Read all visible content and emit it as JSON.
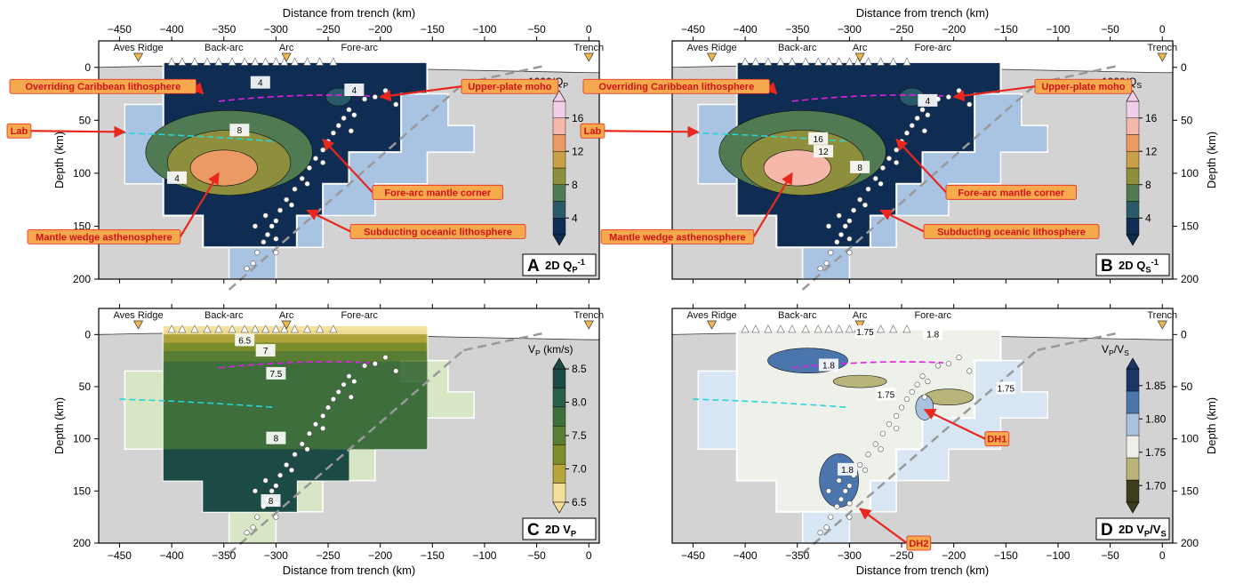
{
  "figure": {
    "x_axis_label": "Distance from trench (km)",
    "y_axis_label": "Depth (km)",
    "x_ticks": [
      -450,
      -400,
      -350,
      -300,
      -250,
      -200,
      -150,
      -100,
      -50,
      0
    ],
    "y_ticks": [
      0,
      50,
      100,
      150,
      200
    ],
    "x_range": [
      -470,
      10
    ],
    "y_range": [
      -25,
      200
    ],
    "surface_labels": [
      "Aves Ridge",
      "Back-arc",
      "Arc",
      "Fore-arc",
      "Trench"
    ]
  },
  "chart_data": [
    {
      "type": "heatmap",
      "panel_letter": "A",
      "panel_title": "2D Q_P^-1",
      "colorbar": {
        "title": "1000/Q_P",
        "ticks": [
          4,
          8,
          12,
          16
        ],
        "range": [
          2,
          18
        ],
        "colors": [
          "#0f2d52",
          "#2a5a6a",
          "#4f7a52",
          "#8e8f3c",
          "#c8a046",
          "#ec9a63",
          "#f5b8aa",
          "#f2cfe8"
        ]
      },
      "contour_labels": [
        "4",
        "8",
        "4",
        "4"
      ],
      "annotations": [
        "Overriding Caribbean lithosphere",
        "Upper-plate moho",
        "Lab",
        "Fore-arc mantle corner",
        "Mantle wedge asthenosphere",
        "Subducting oceanic lithosphere"
      ]
    },
    {
      "type": "heatmap",
      "panel_letter": "B",
      "panel_title": "2D Q_S^-1",
      "colorbar": {
        "title": "1000/Q_S",
        "ticks": [
          4,
          8,
          12,
          16
        ],
        "range": [
          2,
          18
        ],
        "colors": [
          "#0f2d52",
          "#2a5a6a",
          "#4f7a52",
          "#8e8f3c",
          "#c8a046",
          "#ec9a63",
          "#f5b8aa",
          "#f2cfe8"
        ]
      },
      "contour_labels": [
        "16",
        "12",
        "8",
        "4"
      ],
      "annotations": [
        "Overriding Caribbean lithosphere",
        "Upper-plate moho",
        "Lab",
        "Fore-arc mantle corner",
        "Mantle wedge asthenosphere",
        "Subducting oceanic lithosphere"
      ]
    },
    {
      "type": "heatmap",
      "panel_letter": "C",
      "panel_title": "2D V_P",
      "colorbar": {
        "title": "V_P (km/s)",
        "ticks": [
          6.5,
          7.0,
          7.5,
          8.0,
          8.5
        ],
        "tick_labels": [
          "6.5",
          "7.0",
          "7.5",
          "8.0",
          "8.5"
        ],
        "range": [
          6.5,
          8.5
        ],
        "colors": [
          "#f3df98",
          "#b5a53a",
          "#7f8e2a",
          "#5b7d32",
          "#3e6e3c",
          "#295e49",
          "#1c4a44"
        ]
      },
      "contour_labels": [
        "6.5",
        "7",
        "7.5",
        "8",
        "8"
      ],
      "annotations": []
    },
    {
      "type": "heatmap",
      "panel_letter": "D",
      "panel_title": "2D V_P/V_S",
      "colorbar": {
        "title": "V_P/V_S",
        "ticks": [
          1.7,
          1.75,
          1.8,
          1.85
        ],
        "tick_labels": [
          "1.70",
          "1.75",
          "1.80",
          "1.85"
        ],
        "range": [
          1.675,
          1.875
        ],
        "colors": [
          "#3d3c1c",
          "#b8b47a",
          "#efefe8",
          "#a9c2df",
          "#4b76ad",
          "#1d3566"
        ]
      },
      "contour_labels": [
        "1.75",
        "1.8",
        "1.8",
        "1.75",
        "1.75",
        "1.8"
      ],
      "annotations": [
        "DH1",
        "DH2"
      ]
    }
  ]
}
